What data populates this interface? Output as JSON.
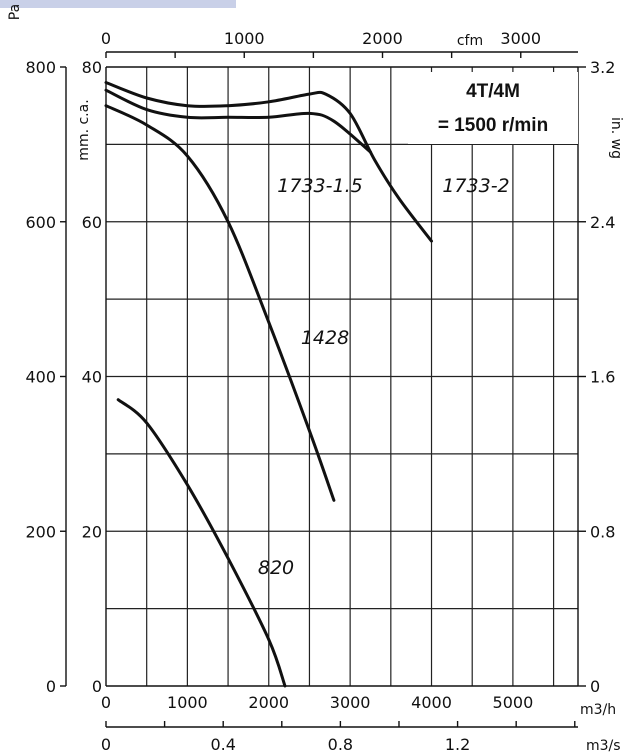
{
  "chart_data": {
    "type": "line",
    "title": "4T/4M",
    "subtitle": "= 1500 r/min",
    "x_axes": {
      "m3h": {
        "label": "m3/h",
        "range": [
          0,
          5800
        ],
        "ticks": [
          0,
          1000,
          2000,
          3000,
          4000,
          5000
        ]
      },
      "m3s": {
        "label": "m3/s",
        "range": [
          0,
          1.611
        ],
        "ticks": [
          "0",
          "0.4",
          "0.8",
          "1.2"
        ]
      },
      "cfm": {
        "label": "cfm",
        "range": [
          0,
          3414
        ],
        "ticks": [
          "0",
          "1000",
          "2000",
          "3000"
        ]
      }
    },
    "y_axes": {
      "pa": {
        "label": "Pa",
        "range": [
          0,
          800
        ],
        "ticks": [
          "0",
          "200",
          "400",
          "600",
          "800"
        ]
      },
      "mmca": {
        "label": "mm. c.a.",
        "range": [
          0,
          80
        ],
        "ticks": [
          "0",
          "20",
          "40",
          "60",
          "80"
        ]
      },
      "inwg": {
        "label": "in. wg",
        "range": [
          0,
          3.2
        ],
        "ticks": [
          "0",
          "0.8",
          "1.6",
          "2.4",
          "3.2"
        ]
      }
    },
    "grid": true,
    "series": [
      {
        "name": "1733-2",
        "x": [
          0,
          500,
          1000,
          1500,
          2000,
          2500,
          2700,
          3000,
          3300,
          3600,
          4000
        ],
        "y": [
          78,
          76,
          75,
          75,
          75.5,
          76.5,
          76.5,
          74,
          68,
          63,
          57.5
        ]
      },
      {
        "name": "1733-1.5",
        "x": [
          0,
          500,
          1000,
          1500,
          2000,
          2500,
          2800,
          3250
        ],
        "y": [
          77,
          74.5,
          73.5,
          73.5,
          73.5,
          74,
          73,
          69
        ]
      },
      {
        "name": "1428",
        "x": [
          0,
          500,
          1000,
          1500,
          2000,
          2500,
          2800
        ],
        "y": [
          75,
          72.5,
          68.5,
          60,
          47,
          33,
          24
        ]
      },
      {
        "name": "820",
        "x": [
          150,
          500,
          1000,
          1500,
          2000,
          2200
        ],
        "y": [
          37,
          34,
          26,
          16.5,
          6,
          0
        ]
      }
    ]
  }
}
